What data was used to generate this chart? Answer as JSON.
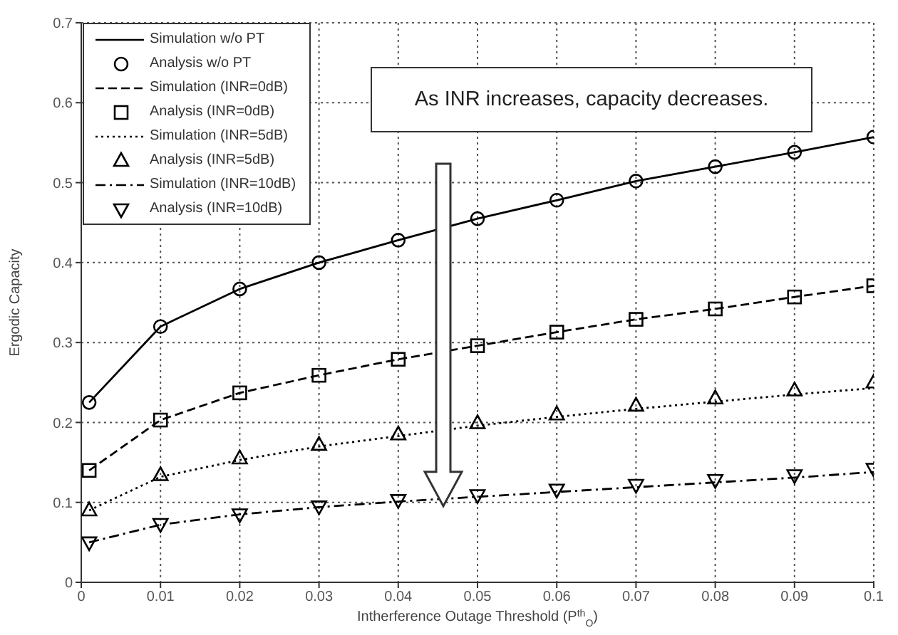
{
  "chart_data": {
    "type": "line",
    "xlabel": "Intherference Outage Threshold (P$^{th}$$_{O}$)",
    "ylabel": "Ergodic Capacity",
    "annotations": [
      "As INR increases, capacity decreases."
    ],
    "x": [
      0.001,
      0.01,
      0.02,
      0.03,
      0.04,
      0.05,
      0.06,
      0.07,
      0.08,
      0.09,
      0.1
    ],
    "series": [
      {
        "name": "Simulation w/o PT",
        "type": "line",
        "color": "#000000",
        "line_style": "solid",
        "marker": "none",
        "values": [
          0.225,
          0.32,
          0.367,
          0.4,
          0.428,
          0.455,
          0.478,
          0.502,
          0.52,
          0.538,
          0.557
        ]
      },
      {
        "name": "Analysis w/o PT",
        "type": "scatter",
        "color": "#000000",
        "marker": "circle",
        "values": [
          0.225,
          0.32,
          0.367,
          0.4,
          0.428,
          0.455,
          0.478,
          0.502,
          0.52,
          0.538,
          0.557
        ]
      },
      {
        "name": "Simulation (INR=0dB)",
        "type": "line",
        "color": "#000000",
        "line_style": "dashed",
        "marker": "none",
        "values": [
          0.14,
          0.203,
          0.237,
          0.259,
          0.279,
          0.296,
          0.313,
          0.329,
          0.342,
          0.357,
          0.371
        ]
      },
      {
        "name": "Analysis (INR=0dB)",
        "type": "scatter",
        "color": "#000000",
        "marker": "square",
        "values": [
          0.14,
          0.203,
          0.237,
          0.259,
          0.279,
          0.296,
          0.313,
          0.329,
          0.342,
          0.357,
          0.371
        ]
      },
      {
        "name": "Simulation (INR=5dB)",
        "type": "line",
        "color": "#000000",
        "line_style": "dotted",
        "marker": "none",
        "values": [
          0.09,
          0.132,
          0.153,
          0.17,
          0.183,
          0.196,
          0.207,
          0.217,
          0.226,
          0.235,
          0.243
        ]
      },
      {
        "name": "Analysis (INR=5dB)",
        "type": "scatter",
        "color": "#000000",
        "marker": "triangle",
        "values": [
          0.09,
          0.134,
          0.155,
          0.172,
          0.185,
          0.199,
          0.21,
          0.221,
          0.23,
          0.24,
          0.25
        ]
      },
      {
        "name": "Simulation (INR=10dB)",
        "type": "line",
        "color": "#000000",
        "line_style": "dashdot",
        "marker": "none",
        "values": [
          0.05,
          0.072,
          0.085,
          0.094,
          0.101,
          0.107,
          0.113,
          0.119,
          0.125,
          0.131,
          0.138
        ]
      },
      {
        "name": "Analysis (INR=10dB)",
        "type": "scatter",
        "color": "#000000",
        "marker": "triangle-down",
        "values": [
          0.05,
          0.073,
          0.085,
          0.095,
          0.103,
          0.109,
          0.116,
          0.122,
          0.128,
          0.134,
          0.142
        ]
      }
    ],
    "xlim": [
      0,
      0.1
    ],
    "xticks": [
      0,
      0.01,
      0.02,
      0.03,
      0.04,
      0.05,
      0.06,
      0.07,
      0.08,
      0.09,
      0.1
    ],
    "ylim": [
      0,
      0.7
    ],
    "yticks": [
      0,
      0.1,
      0.2,
      0.3,
      0.4,
      0.5,
      0.6,
      0.7
    ],
    "grid": true,
    "legend": "top left"
  }
}
